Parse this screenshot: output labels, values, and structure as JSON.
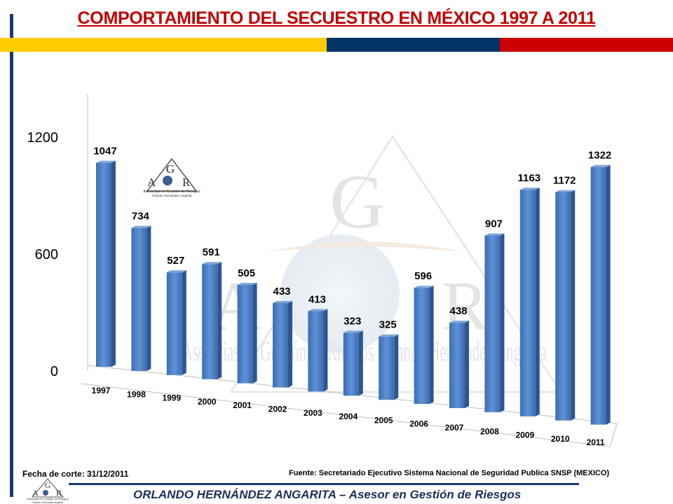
{
  "title": "COMPORTAMIENTO DEL SECUESTRO EN MÉXICO 1997 A  2011",
  "stripe_colors": [
    "#ffcc00",
    "#003366",
    "#cc0000"
  ],
  "logo": {
    "letters": [
      "G",
      "A",
      "R"
    ],
    "line1": "Asesorias en Gestión de Riesgos",
    "line2": "Orlando Hernández Angarita"
  },
  "watermark_text": "Asesorias en Gestión de Riesgos Orlando Hernández Angarita",
  "chart_data": {
    "type": "bar",
    "categories": [
      "1997",
      "1998",
      "1999",
      "2000",
      "2001",
      "2002",
      "2003",
      "2004",
      "2005",
      "2006",
      "2007",
      "2008",
      "2009",
      "2010",
      "2011"
    ],
    "values": [
      1047,
      734,
      527,
      591,
      505,
      433,
      413,
      323,
      325,
      596,
      438,
      907,
      1163,
      1172,
      1322
    ],
    "yticks": [
      0,
      600,
      1200
    ],
    "ylim": [
      0,
      1400
    ],
    "bar_color": "#4a7ec4",
    "grid": false,
    "style": "3d-perspective"
  },
  "footer": {
    "cutoff": "Fecha de corte: 31/12/2011",
    "source": "Fuente: Secretariado Ejecutivo Sistema Nacional de Seguridad Publica SNSP (MEXICO)",
    "author": "ORLANDO HERNÁNDEZ ANGARITA – Asesor en Gestión de Riesgos"
  }
}
